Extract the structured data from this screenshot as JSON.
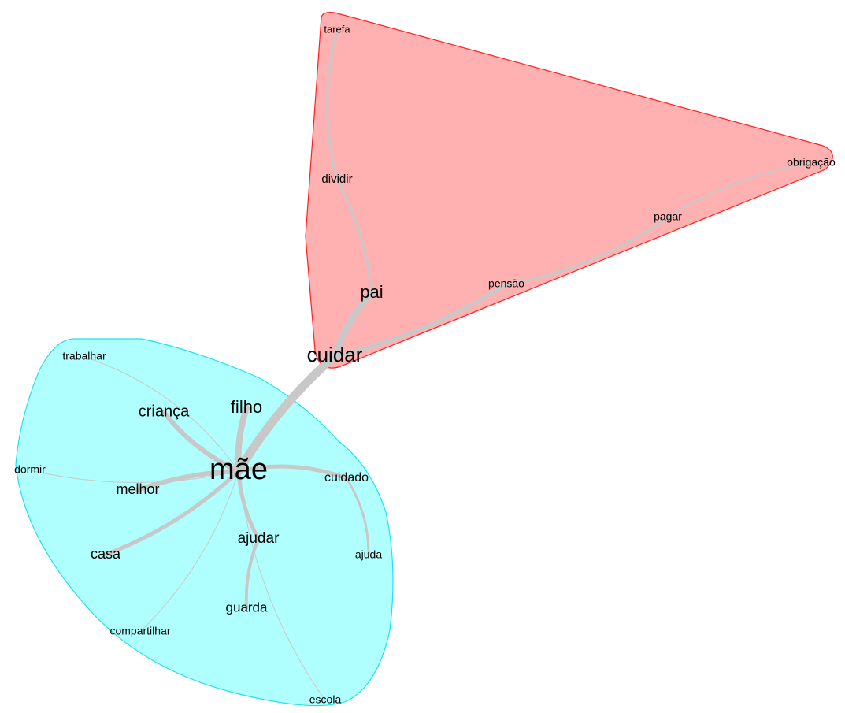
{
  "nodes": [
    {
      "label": "tarefa"
    },
    {
      "label": "dividir"
    },
    {
      "label": "pai"
    },
    {
      "label": "cuidar"
    },
    {
      "label": "pensão"
    },
    {
      "label": "pagar"
    },
    {
      "label": "obrigação"
    },
    {
      "label": "trabalhar"
    },
    {
      "label": "criança"
    },
    {
      "label": "filho"
    },
    {
      "label": "mãe"
    },
    {
      "label": "cuidado"
    },
    {
      "label": "dormir"
    },
    {
      "label": "melhor"
    },
    {
      "label": "casa"
    },
    {
      "label": "ajudar"
    },
    {
      "label": "ajuda"
    },
    {
      "label": "guarda"
    },
    {
      "label": "compartilhar"
    },
    {
      "label": "escola"
    }
  ]
}
